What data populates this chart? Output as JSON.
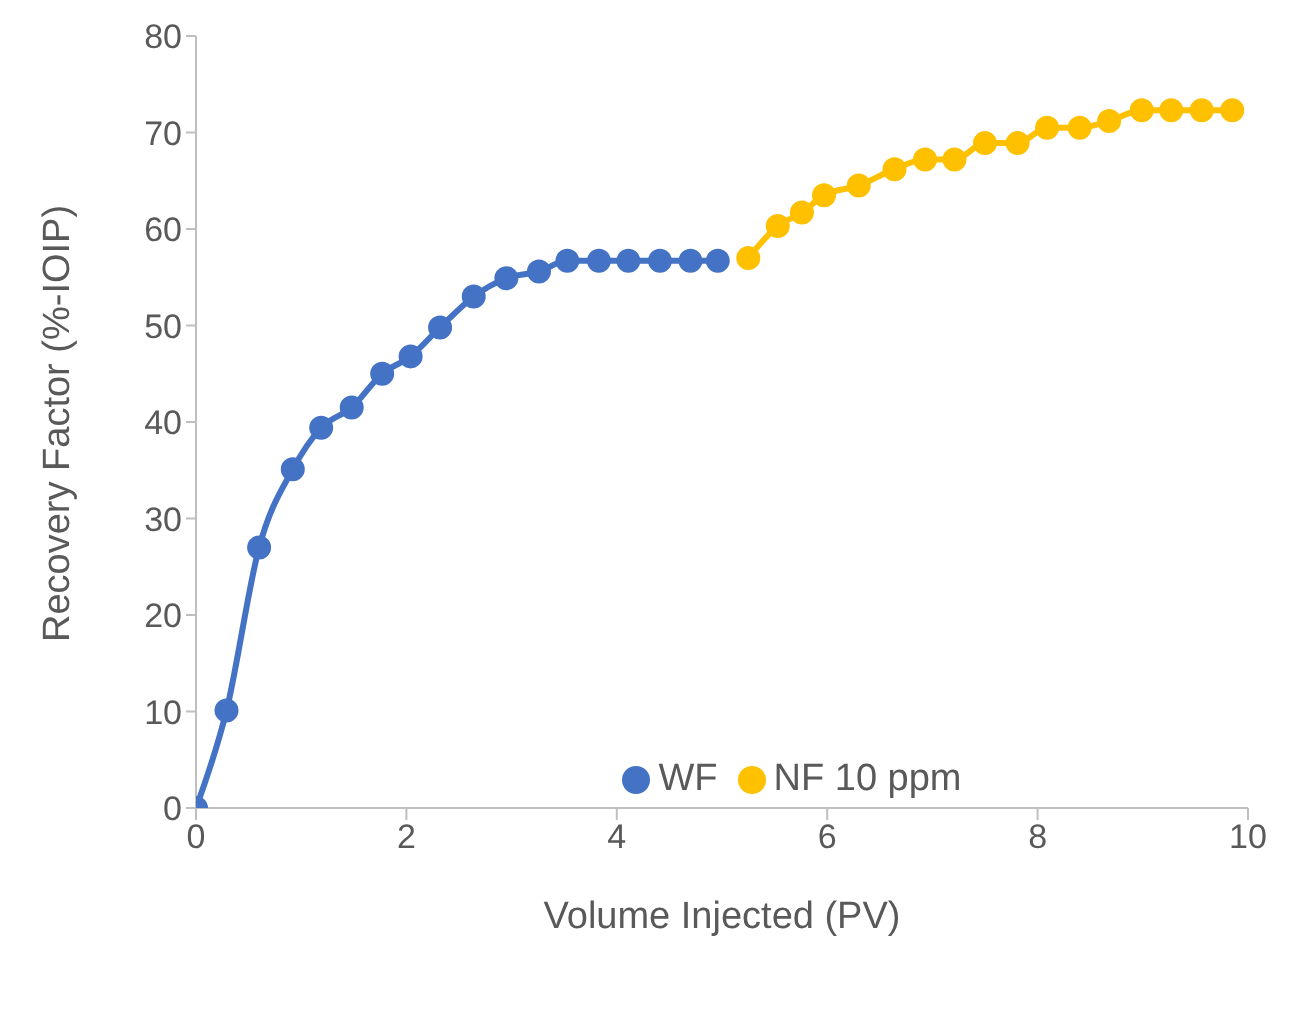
{
  "chart_data": {
    "type": "line",
    "xlabel": "Volume Injected (PV)",
    "ylabel": "Recovery Factor (%-IOIP)",
    "xlim": [
      0,
      10
    ],
    "xticks": [
      0,
      2,
      4,
      6,
      8,
      10
    ],
    "ylim": [
      0,
      80
    ],
    "yticks": [
      0,
      10,
      20,
      30,
      40,
      50,
      60,
      70,
      80
    ],
    "grid": false,
    "legend": "bottom",
    "marker": "circle",
    "line_style": "solid",
    "series": [
      {
        "name": "WF",
        "color": "#4472c4",
        "x": [
          0,
          0.29,
          0.6,
          0.92,
          1.19,
          1.48,
          1.77,
          2.04,
          2.32,
          2.64,
          2.95,
          3.26,
          3.53,
          3.83,
          4.11,
          4.41,
          4.7,
          4.96
        ],
        "values": [
          0,
          10.1,
          27,
          35.1,
          39.4,
          41.5,
          45,
          46.8,
          49.8,
          53,
          54.9,
          55.6,
          56.7,
          56.7,
          56.7,
          56.7,
          56.7,
          56.7
        ]
      },
      {
        "name": "NF 10 ppm",
        "color": "#ffc000",
        "x": [
          5.25,
          5.53,
          5.76,
          5.97,
          6.3,
          6.64,
          6.93,
          7.21,
          7.5,
          7.81,
          8.09,
          8.4,
          8.68,
          8.99,
          9.27,
          9.56,
          9.85
        ],
        "values": [
          57,
          60.3,
          61.7,
          63.5,
          64.5,
          66.2,
          67.2,
          67.2,
          68.9,
          68.9,
          70.5,
          70.5,
          71.2,
          72.3,
          72.3,
          72.3,
          72.3
        ]
      }
    ]
  }
}
